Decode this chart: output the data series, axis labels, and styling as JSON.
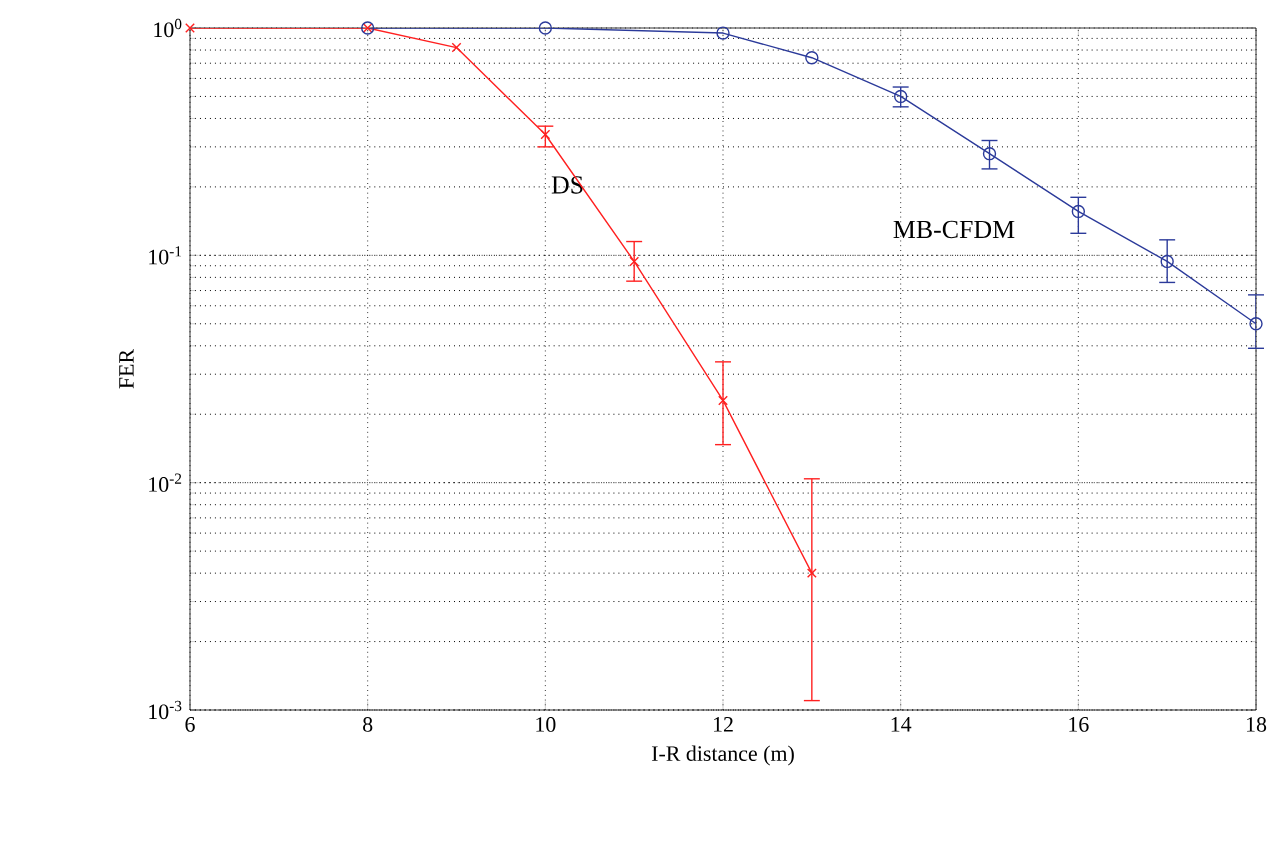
{
  "chart_data": {
    "type": "line",
    "xlabel": "I-R distance (m)",
    "ylabel": "FER",
    "log": "y",
    "grid": true,
    "xlim": [
      6,
      18
    ],
    "xticks": [
      6,
      8,
      10,
      12,
      14,
      16,
      18
    ],
    "ylim": [
      0.001,
      1
    ],
    "yticks": [
      {
        "value": 0.001,
        "label": "10$^{-3}$"
      },
      {
        "value": 0.01,
        "label": "10$^{-2}$"
      },
      {
        "value": 0.1,
        "label": "10$^{-1}$"
      },
      {
        "value": 1,
        "label": "10$^{0}$"
      }
    ],
    "series": [
      {
        "name": "DS",
        "color": "#ff2020",
        "marker": "cross",
        "x": [
          6,
          8,
          9,
          10,
          11,
          12,
          13
        ],
        "values": [
          1,
          1,
          0.82,
          0.34,
          0.094,
          0.023,
          0.004
        ],
        "errors": [
          null,
          null,
          null,
          [
            0.3,
            0.37
          ],
          [
            0.077,
            0.115
          ],
          [
            0.0147,
            0.034
          ],
          [
            0.0011,
            0.0104
          ]
        ]
      },
      {
        "name": "MB-CFDM",
        "color": "#2b3a9a",
        "marker": "circle",
        "x": [
          8,
          10,
          12,
          13,
          14,
          15,
          16,
          17,
          18
        ],
        "values": [
          1,
          1,
          0.95,
          0.74,
          0.5,
          0.28,
          0.156,
          0.094,
          0.05
        ],
        "errors": [
          null,
          null,
          null,
          null,
          [
            0.45,
            0.55
          ],
          [
            0.24,
            0.32
          ],
          [
            0.125,
            0.18
          ],
          [
            0.076,
            0.117
          ],
          [
            0.039,
            0.067
          ]
        ]
      }
    ]
  }
}
